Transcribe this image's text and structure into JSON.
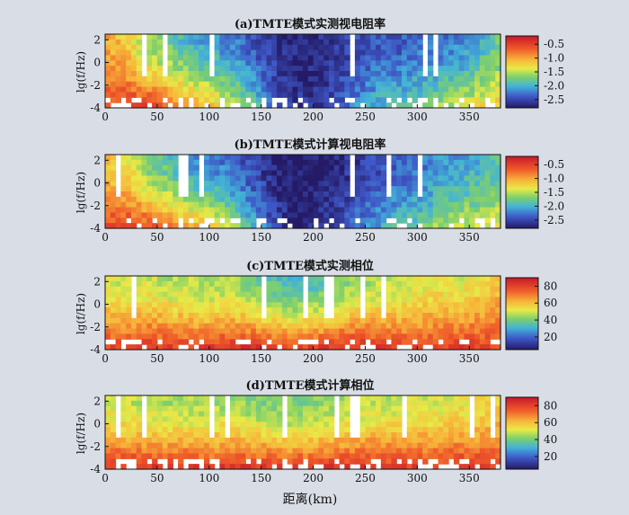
{
  "chart_data": [
    {
      "type": "heatmap",
      "title": "(a)TMTE模式实测视电阻率",
      "ylabel": "lg(f/Hz)",
      "xlabel": "",
      "xlim": [
        0,
        380
      ],
      "ylim": [
        -4,
        2.5
      ],
      "x_ticks": [
        "0",
        "50",
        "100",
        "150",
        "200",
        "250",
        "300",
        "350"
      ],
      "y_ticks": [
        "2",
        "0",
        "-2",
        "-4"
      ],
      "colorbar": {
        "ticks": [
          "-0.5",
          "-1.0",
          "-1.5",
          "-2.0",
          "-2.5"
        ],
        "range": [
          -2.8,
          -0.2
        ]
      },
      "profile": {
        "x": [
          0,
          20,
          40,
          60,
          80,
          100,
          120,
          140,
          160,
          180,
          200,
          220,
          240,
          260,
          280,
          300,
          320,
          340,
          360,
          380
        ],
        "surface": [
          -1.0,
          -1.2,
          -1.6,
          -1.8,
          -2.0,
          -2.1,
          -2.2,
          -2.4,
          -2.6,
          -2.7,
          -2.7,
          -2.6,
          -2.5,
          -2.4,
          -2.4,
          -2.3,
          -2.3,
          -2.2,
          -2.0,
          -1.8
        ],
        "deep": [
          -0.6,
          -0.5,
          -0.5,
          -0.7,
          -0.9,
          -1.1,
          -1.4,
          -1.8,
          -2.3,
          -2.6,
          -2.6,
          -2.5,
          -2.2,
          -2.0,
          -1.9,
          -1.8,
          -1.6,
          -1.5,
          -1.3,
          -1.2
        ]
      }
    },
    {
      "type": "heatmap",
      "title": "(b)TMTE模式计算视电阻率",
      "ylabel": "lg(f/Hz)",
      "xlabel": "",
      "xlim": [
        0,
        380
      ],
      "ylim": [
        -4,
        2.5
      ],
      "x_ticks": [
        "0",
        "50",
        "100",
        "150",
        "200",
        "250",
        "300",
        "350"
      ],
      "y_ticks": [
        "2",
        "0",
        "-2",
        "-4"
      ],
      "colorbar": {
        "ticks": [
          "-0.5",
          "-1.0",
          "-1.5",
          "-2.0",
          "-2.5"
        ],
        "range": [
          -2.8,
          -0.2
        ]
      },
      "profile": {
        "x": [
          0,
          20,
          40,
          60,
          80,
          100,
          120,
          140,
          160,
          180,
          200,
          220,
          240,
          260,
          280,
          300,
          320,
          340,
          360,
          380
        ],
        "surface": [
          -1.1,
          -1.3,
          -1.7,
          -1.9,
          -2.1,
          -2.2,
          -2.3,
          -2.5,
          -2.7,
          -2.8,
          -2.8,
          -2.7,
          -2.6,
          -2.5,
          -2.4,
          -2.3,
          -2.2,
          -2.1,
          -2.0,
          -1.9
        ],
        "deep": [
          -0.6,
          -0.5,
          -0.6,
          -0.8,
          -1.0,
          -1.2,
          -1.5,
          -1.9,
          -2.4,
          -2.7,
          -2.7,
          -2.5,
          -2.3,
          -2.1,
          -1.9,
          -1.8,
          -1.6,
          -1.5,
          -1.4,
          -1.3
        ]
      }
    },
    {
      "type": "heatmap",
      "title": "(c)TMTE模式实测相位",
      "ylabel": "lg(f/Hz)",
      "xlabel": "",
      "xlim": [
        0,
        380
      ],
      "ylim": [
        -4,
        2.5
      ],
      "x_ticks": [
        "0",
        "50",
        "100",
        "150",
        "200",
        "250",
        "300",
        "350"
      ],
      "y_ticks": [
        "2",
        "0",
        "-2",
        "-4"
      ],
      "colorbar": {
        "ticks": [
          "80",
          "60",
          "40",
          "20"
        ],
        "range": [
          5,
          90
        ]
      },
      "profile": {
        "x": [
          0,
          20,
          40,
          60,
          80,
          100,
          120,
          140,
          160,
          180,
          200,
          220,
          240,
          260,
          280,
          300,
          320,
          340,
          360,
          380
        ],
        "surface": [
          52,
          48,
          50,
          46,
          48,
          44,
          46,
          40,
          36,
          32,
          34,
          40,
          44,
          46,
          48,
          50,
          52,
          50,
          55,
          60
        ],
        "deep": [
          78,
          80,
          82,
          80,
          78,
          80,
          82,
          84,
          80,
          78,
          80,
          82,
          84,
          82,
          80,
          78,
          80,
          82,
          80,
          78
        ]
      }
    },
    {
      "type": "heatmap",
      "title": "(d)TMTE模式计算相位",
      "ylabel": "lg(f/Hz)",
      "xlabel": "距离(km)",
      "xlim": [
        0,
        380
      ],
      "ylim": [
        -4,
        2.5
      ],
      "x_ticks": [
        "0",
        "50",
        "100",
        "150",
        "200",
        "250",
        "300",
        "350"
      ],
      "y_ticks": [
        "2",
        "0",
        "-2",
        "-4"
      ],
      "colorbar": {
        "ticks": [
          "80",
          "60",
          "40",
          "20"
        ],
        "range": [
          5,
          90
        ]
      },
      "profile": {
        "x": [
          0,
          20,
          40,
          60,
          80,
          100,
          120,
          140,
          160,
          180,
          200,
          220,
          240,
          260,
          280,
          300,
          320,
          340,
          360,
          380
        ],
        "surface": [
          50,
          48,
          46,
          45,
          46,
          44,
          45,
          42,
          40,
          40,
          42,
          44,
          46,
          48,
          48,
          50,
          50,
          52,
          54,
          56
        ],
        "deep": [
          80,
          82,
          82,
          80,
          80,
          80,
          82,
          82,
          80,
          80,
          80,
          82,
          82,
          82,
          80,
          80,
          80,
          82,
          80,
          80
        ]
      }
    }
  ]
}
